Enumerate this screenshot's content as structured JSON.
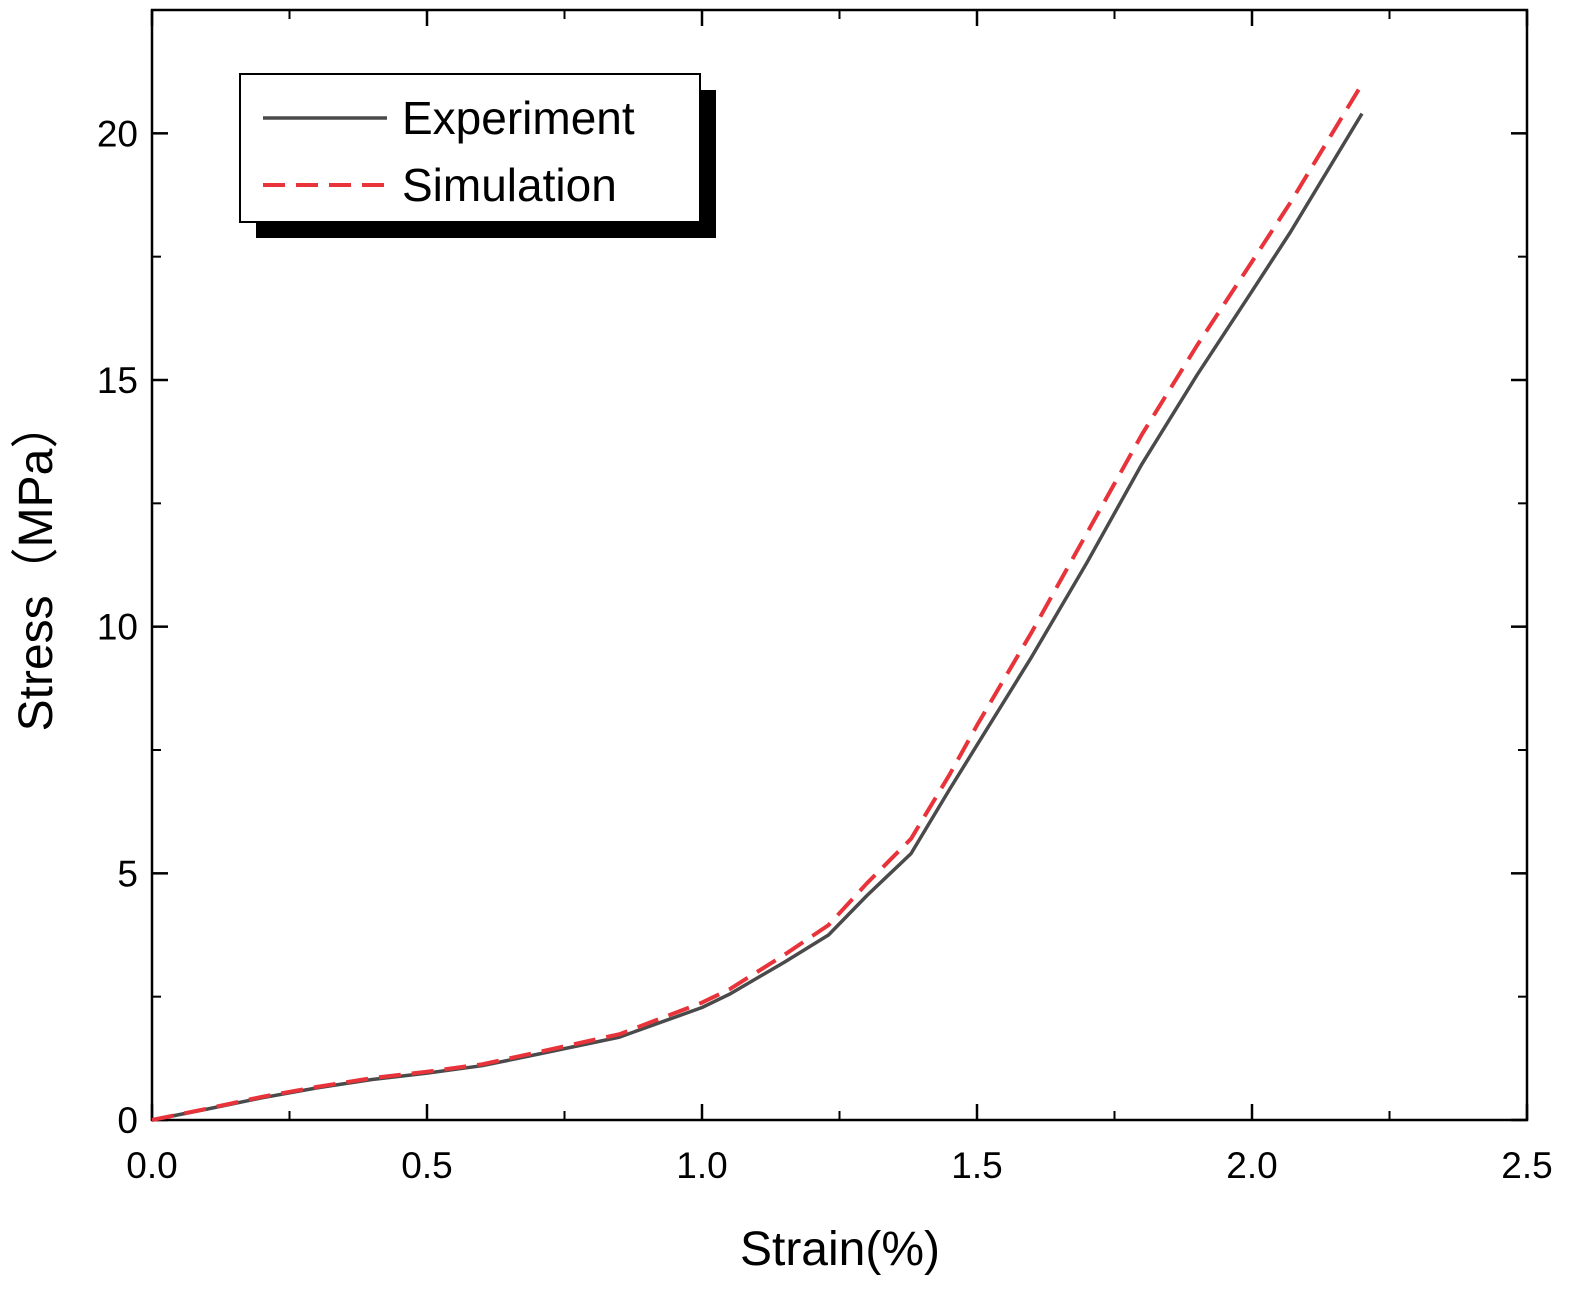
{
  "chart_data": {
    "type": "line",
    "xlabel": "Strain(%)",
    "ylabel": "Stress（MPa）",
    "xlim": [
      0,
      2.5
    ],
    "ylim": [
      0,
      22.5
    ],
    "x_ticks": [
      "0.0",
      "0.5",
      "1.0",
      "1.5",
      "2.0",
      "2.5"
    ],
    "x_tick_values": [
      0,
      0.5,
      1.0,
      1.5,
      2.0,
      2.5
    ],
    "y_ticks": [
      "0",
      "5",
      "10",
      "15",
      "20"
    ],
    "y_tick_values": [
      0,
      5,
      10,
      15,
      20
    ],
    "grid": false,
    "legend_position": "top-left",
    "series": [
      {
        "name": "Experiment",
        "color": "#4a4a4a",
        "style": "solid",
        "x": [
          0.0,
          0.1,
          0.2,
          0.3,
          0.4,
          0.5,
          0.6,
          0.7,
          0.85,
          1.0,
          1.05,
          1.15,
          1.23,
          1.3,
          1.38,
          1.45,
          1.5,
          1.6,
          1.7,
          1.8,
          1.9,
          2.0,
          2.07,
          2.2
        ],
        "y": [
          0.0,
          0.22,
          0.45,
          0.65,
          0.82,
          0.95,
          1.1,
          1.33,
          1.68,
          2.28,
          2.55,
          3.2,
          3.75,
          4.55,
          5.4,
          6.7,
          7.6,
          9.4,
          11.3,
          13.3,
          15.1,
          16.8,
          18.0,
          20.4
        ]
      },
      {
        "name": "Simulation",
        "color": "#e8333a",
        "style": "dashed",
        "x": [
          0.0,
          0.1,
          0.2,
          0.3,
          0.4,
          0.5,
          0.6,
          0.7,
          0.85,
          1.0,
          1.05,
          1.15,
          1.23,
          1.3,
          1.38,
          1.45,
          1.5,
          1.6,
          1.7,
          1.8,
          1.9,
          2.0,
          2.07,
          2.2
        ],
        "y": [
          0.0,
          0.23,
          0.47,
          0.67,
          0.85,
          0.98,
          1.13,
          1.37,
          1.74,
          2.38,
          2.65,
          3.35,
          3.95,
          4.8,
          5.7,
          7.0,
          8.0,
          9.9,
          11.9,
          13.9,
          15.7,
          17.4,
          18.6,
          21.0
        ]
      }
    ]
  }
}
